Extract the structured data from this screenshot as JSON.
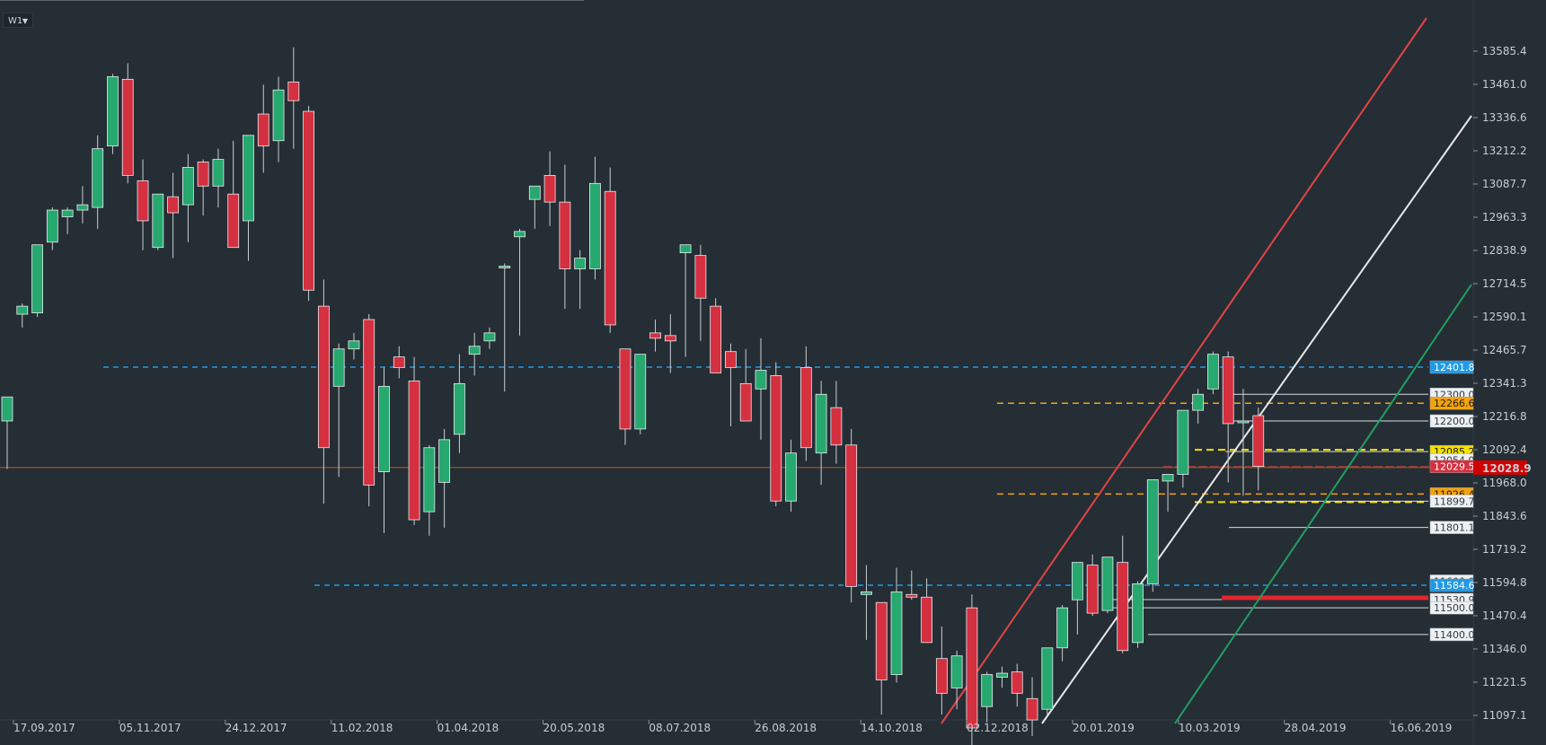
{
  "toolbar": {
    "timeframe": "W1",
    "timeframe_icon": "chevron-down-icon"
  },
  "colors": {
    "background": "#252d35",
    "bull": "#26a86f",
    "bear": "#d4303f",
    "wick": "#c9ced3",
    "axis_text": "#c7ced4",
    "fib_blue": "#1e9be8",
    "fib_orange": "#f5a30a",
    "fib_yellow": "#f5e000",
    "current": "#d00000",
    "hline_brown": "#a0662e",
    "channel_red": "#e24545",
    "channel_white": "#e8e8e8",
    "channel_green": "#20a060"
  },
  "chart_data": {
    "type": "candlestick",
    "timeframe": "W1",
    "ylim": [
      11060,
      13740
    ],
    "x_labels": [
      "17.09.2017",
      "05.11.2017",
      "24.12.2017",
      "11.02.2018",
      "01.04.2018",
      "20.05.2018",
      "08.07.2018",
      "26.08.2018",
      "14.10.2018",
      "02.12.2018",
      "20.01.2019",
      "10.03.2019",
      "28.04.2019",
      "16.06.2019"
    ],
    "y_ticks": [
      13585.4,
      13461.0,
      13336.6,
      13212.2,
      13087.7,
      12963.3,
      12838.9,
      12714.5,
      12590.1,
      12465.7,
      12341.3,
      12216.8,
      12092.4,
      11968.0,
      11843.6,
      11719.2,
      11594.8,
      11470.4,
      11346.0,
      11221.5,
      11097.1
    ],
    "current_price": {
      "value": 12028.9,
      "label": "12028.9"
    },
    "price_tags": [
      {
        "value": 12401.8,
        "label": "12401.8",
        "style": "blue"
      },
      {
        "value": 12300.0,
        "label": "12300.0",
        "style": "white"
      },
      {
        "value": 12266.6,
        "label": "12266.6",
        "style": "orange"
      },
      {
        "value": 12200.0,
        "label": "12200.0",
        "style": "white"
      },
      {
        "value": 12085.2,
        "label": "12085.2",
        "style": "yellow"
      },
      {
        "value": 12054.0,
        "label": "12054.0",
        "style": "white"
      },
      {
        "value": 12029.5,
        "label": "12029.5",
        "style": "red"
      },
      {
        "value": 11926.4,
        "label": "11926.4",
        "style": "orange"
      },
      {
        "value": 11899.7,
        "label": "11899.7",
        "style": "white"
      },
      {
        "value": 11801.1,
        "label": "11801.1",
        "style": "white"
      },
      {
        "value": 11600.0,
        "label": "11600.0",
        "style": "white"
      },
      {
        "value": 11584.6,
        "label": "11584.6",
        "style": "blue"
      },
      {
        "value": 11530.9,
        "label": "11530.9",
        "style": "white"
      },
      {
        "value": 11500.0,
        "label": "11500.0",
        "style": "white"
      },
      {
        "value": 11400.0,
        "label": "11400.0",
        "style": "white"
      }
    ],
    "candles": [
      {
        "o": 12200,
        "h": 12290,
        "l": 12020,
        "c": 12290
      },
      {
        "o": 12600,
        "h": 12640,
        "l": 12550,
        "c": 12630
      },
      {
        "o": 12605,
        "h": 12850,
        "l": 12590,
        "c": 12860
      },
      {
        "o": 12870,
        "h": 13000,
        "l": 12840,
        "c": 12990
      },
      {
        "o": 12965,
        "h": 13000,
        "l": 12900,
        "c": 12990
      },
      {
        "o": 12990,
        "h": 13080,
        "l": 12940,
        "c": 13010
      },
      {
        "o": 13000,
        "h": 13270,
        "l": 12920,
        "c": 13220
      },
      {
        "o": 13230,
        "h": 13500,
        "l": 13200,
        "c": 13490
      },
      {
        "o": 13480,
        "h": 13540,
        "l": 13090,
        "c": 13120
      },
      {
        "o": 13100,
        "h": 13180,
        "l": 12840,
        "c": 12950
      },
      {
        "o": 12850,
        "h": 13050,
        "l": 12840,
        "c": 13050
      },
      {
        "o": 13040,
        "h": 13130,
        "l": 12810,
        "c": 12980
      },
      {
        "o": 13010,
        "h": 13200,
        "l": 12870,
        "c": 13150
      },
      {
        "o": 13170,
        "h": 13180,
        "l": 12970,
        "c": 13080
      },
      {
        "o": 13080,
        "h": 13220,
        "l": 13000,
        "c": 13180
      },
      {
        "o": 13050,
        "h": 13250,
        "l": 12850,
        "c": 12850
      },
      {
        "o": 12950,
        "h": 13270,
        "l": 12800,
        "c": 13270
      },
      {
        "o": 13350,
        "h": 13460,
        "l": 13130,
        "c": 13230
      },
      {
        "o": 13250,
        "h": 13490,
        "l": 13170,
        "c": 13440
      },
      {
        "o": 13470,
        "h": 13600,
        "l": 13220,
        "c": 13400
      },
      {
        "o": 13360,
        "h": 13380,
        "l": 12650,
        "c": 12690
      },
      {
        "o": 12630,
        "h": 12730,
        "l": 11890,
        "c": 12100
      },
      {
        "o": 12330,
        "h": 12490,
        "l": 11990,
        "c": 12470
      },
      {
        "o": 12470,
        "h": 12530,
        "l": 12430,
        "c": 12500
      },
      {
        "o": 12580,
        "h": 12600,
        "l": 11880,
        "c": 11960
      },
      {
        "o": 12010,
        "h": 12400,
        "l": 11780,
        "c": 12330
      },
      {
        "o": 12440,
        "h": 12480,
        "l": 12360,
        "c": 12400
      },
      {
        "o": 12350,
        "h": 12440,
        "l": 11810,
        "c": 11830
      },
      {
        "o": 11860,
        "h": 12110,
        "l": 11770,
        "c": 12100
      },
      {
        "o": 11970,
        "h": 12170,
        "l": 11800,
        "c": 12130
      },
      {
        "o": 12150,
        "h": 12450,
        "l": 12080,
        "c": 12340
      },
      {
        "o": 12450,
        "h": 12530,
        "l": 12370,
        "c": 12480
      },
      {
        "o": 12500,
        "h": 12550,
        "l": 12470,
        "c": 12530
      },
      {
        "o": 12780,
        "h": 12790,
        "l": 12310,
        "c": 12780
      },
      {
        "o": 12890,
        "h": 12920,
        "l": 12520,
        "c": 12910
      },
      {
        "o": 13030,
        "h": 13070,
        "l": 12920,
        "c": 13080
      },
      {
        "o": 13120,
        "h": 13210,
        "l": 12930,
        "c": 13020
      },
      {
        "o": 13020,
        "h": 13160,
        "l": 12620,
        "c": 12770
      },
      {
        "o": 12770,
        "h": 12840,
        "l": 12620,
        "c": 12810
      },
      {
        "o": 12770,
        "h": 13190,
        "l": 12730,
        "c": 13090
      },
      {
        "o": 13060,
        "h": 13150,
        "l": 12530,
        "c": 12560
      },
      {
        "o": 12470,
        "h": 12470,
        "l": 12110,
        "c": 12170
      },
      {
        "o": 12170,
        "h": 12450,
        "l": 12150,
        "c": 12450
      },
      {
        "o": 12530,
        "h": 12580,
        "l": 12460,
        "c": 12510
      },
      {
        "o": 12520,
        "h": 12600,
        "l": 12380,
        "c": 12500
      },
      {
        "o": 12830,
        "h": 12850,
        "l": 12440,
        "c": 12860
      },
      {
        "o": 12820,
        "h": 12860,
        "l": 12500,
        "c": 12660
      },
      {
        "o": 12630,
        "h": 12660,
        "l": 12380,
        "c": 12380
      },
      {
        "o": 12460,
        "h": 12490,
        "l": 12180,
        "c": 12400
      },
      {
        "o": 12340,
        "h": 12470,
        "l": 12210,
        "c": 12200
      },
      {
        "o": 12320,
        "h": 12510,
        "l": 12130,
        "c": 12390
      },
      {
        "o": 12370,
        "h": 12420,
        "l": 11880,
        "c": 11900
      },
      {
        "o": 11900,
        "h": 12130,
        "l": 11860,
        "c": 12080
      },
      {
        "o": 12400,
        "h": 12480,
        "l": 12050,
        "c": 12100
      },
      {
        "o": 12080,
        "h": 12350,
        "l": 11960,
        "c": 12300
      },
      {
        "o": 12250,
        "h": 12350,
        "l": 12040,
        "c": 12110
      },
      {
        "o": 12110,
        "h": 12170,
        "l": 11520,
        "c": 11580
      },
      {
        "o": 11550,
        "h": 11660,
        "l": 11380,
        "c": 11560
      },
      {
        "o": 11520,
        "h": 11500,
        "l": 11100,
        "c": 11230
      },
      {
        "o": 11250,
        "h": 11650,
        "l": 11220,
        "c": 11560
      },
      {
        "o": 11550,
        "h": 11640,
        "l": 11530,
        "c": 11540
      },
      {
        "o": 11540,
        "h": 11610,
        "l": 11370,
        "c": 11370
      },
      {
        "o": 11310,
        "h": 11430,
        "l": 11100,
        "c": 11180
      },
      {
        "o": 11200,
        "h": 11340,
        "l": 11120,
        "c": 11320
      },
      {
        "o": 11500,
        "h": 11550,
        "l": 10950,
        "c": 11050
      },
      {
        "o": 11130,
        "h": 11260,
        "l": 11070,
        "c": 11250
      },
      {
        "o": 11240,
        "h": 11280,
        "l": 11200,
        "c": 11255
      },
      {
        "o": 11260,
        "h": 11290,
        "l": 11130,
        "c": 11180
      },
      {
        "o": 11160,
        "h": 11240,
        "l": 11020,
        "c": 11080
      },
      {
        "o": 11120,
        "h": 11350,
        "l": 11100,
        "c": 11350
      },
      {
        "o": 11350,
        "h": 11510,
        "l": 11300,
        "c": 11500
      },
      {
        "o": 11530,
        "h": 11650,
        "l": 11400,
        "c": 11670
      },
      {
        "o": 11660,
        "h": 11700,
        "l": 11470,
        "c": 11480
      },
      {
        "o": 11490,
        "h": 11690,
        "l": 11480,
        "c": 11690
      },
      {
        "o": 11670,
        "h": 11770,
        "l": 11330,
        "c": 11340
      },
      {
        "o": 11370,
        "h": 11600,
        "l": 11350,
        "c": 11590
      },
      {
        "o": 11590,
        "h": 11980,
        "l": 11560,
        "c": 11980
      },
      {
        "o": 11975,
        "h": 12000,
        "l": 11860,
        "c": 12000
      },
      {
        "o": 12000,
        "h": 12240,
        "l": 11950,
        "c": 12240
      },
      {
        "o": 12240,
        "h": 12320,
        "l": 12190,
        "c": 12300
      },
      {
        "o": 12320,
        "h": 12460,
        "l": 12300,
        "c": 12450
      },
      {
        "o": 12440,
        "h": 12460,
        "l": 11970,
        "c": 12190
      },
      {
        "o": 12200,
        "h": 12320,
        "l": 11920,
        "c": 12200
      },
      {
        "o": 12220,
        "h": 12250,
        "l": 11940,
        "c": 12030
      }
    ]
  }
}
